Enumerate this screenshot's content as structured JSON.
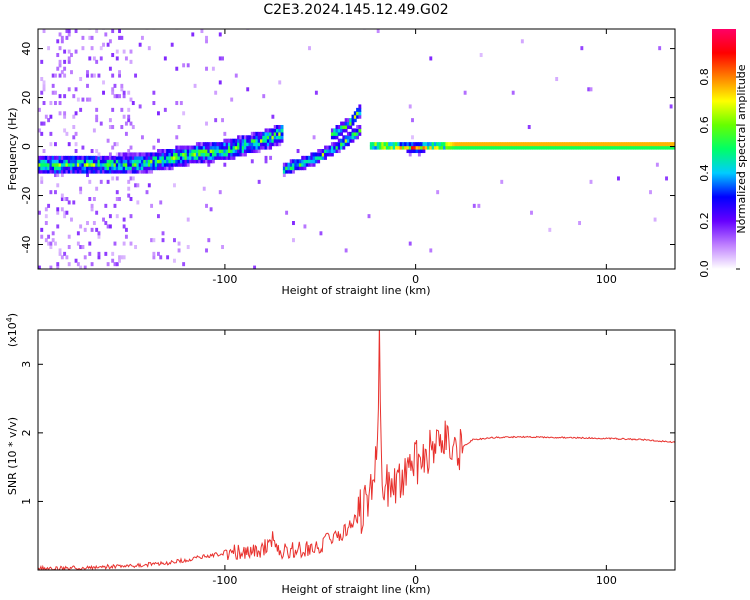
{
  "figure_title": "C2E3.2024.145.12.49.G02",
  "chart_data": [
    {
      "type": "heatmap",
      "title": "C2E3.2024.145.12.49.G02",
      "xlabel": "Height of straight line (km)",
      "ylabel": "Frequency (Hz)",
      "xlim": [
        -198,
        136
      ],
      "ylim": [
        -50,
        48
      ],
      "x_ticks": [
        -100,
        0,
        100
      ],
      "y_ticks": [
        -40,
        -20,
        0,
        20,
        40
      ],
      "colorbar": {
        "label": "Normalized spectral amplitude",
        "range": [
          0,
          1
        ],
        "ticks": [
          "0.0",
          "0.2",
          "0.4",
          "0.6",
          "0.8"
        ],
        "colors": [
          "#ffffff",
          "#bf80ff",
          "#6600ff",
          "#0000ff",
          "#00ccff",
          "#00ff66",
          "#66ff00",
          "#ffff00",
          "#ff8000",
          "#ff0000",
          "#ff0066"
        ]
      },
      "features": [
        {
          "name": "wide band",
          "x": [
            -198,
            -180,
            -160,
            -140,
            -120,
            -100,
            -80,
            -70
          ],
          "y": [
            -8,
            -8,
            -8,
            -7,
            -4,
            -2,
            2,
            5
          ]
        },
        {
          "name": "rising branch",
          "x": [
            -70,
            -55,
            -40,
            -30
          ],
          "y": [
            -10,
            -6,
            0,
            6
          ]
        },
        {
          "name": "upper branch",
          "x": [
            -45,
            -35,
            -30
          ],
          "y": [
            4,
            9,
            14
          ]
        },
        {
          "name": "carrier line",
          "x": [
            -25,
            0,
            20,
            60,
            100,
            136
          ],
          "y": [
            0,
            -1,
            0,
            0,
            0,
            0
          ]
        }
      ]
    },
    {
      "type": "line",
      "xlabel": "Height of straight line (km)",
      "ylabel": "SNR (10 * v/v)",
      "scale_label": "(x10",
      "scale_exp": "4",
      "xlim": [
        -198,
        136
      ],
      "ylim": [
        0,
        3.5
      ],
      "x_ticks": [
        -100,
        0,
        100
      ],
      "y_ticks": [
        1,
        2,
        3
      ],
      "color": "#e8322e",
      "series": [
        {
          "x": [
            -198,
            -180,
            -160,
            -150,
            -140,
            -130,
            -120,
            -110,
            -100,
            -90,
            -80,
            -75,
            -70,
            -60,
            -50,
            -45,
            -40,
            -35,
            -30,
            -25,
            -22,
            -20,
            -19,
            -18,
            -15,
            -10,
            -5,
            0,
            5,
            10,
            15,
            20,
            25,
            30,
            40,
            50,
            60,
            80,
            100,
            120,
            136
          ],
          "y": [
            0.02,
            0.03,
            0.05,
            0.06,
            0.08,
            0.1,
            0.15,
            0.2,
            0.25,
            0.28,
            0.3,
            0.45,
            0.28,
            0.3,
            0.35,
            0.45,
            0.5,
            0.65,
            0.8,
            1.05,
            1.4,
            1.7,
            3.4,
            1.5,
            1.2,
            1.3,
            1.45,
            1.55,
            1.65,
            1.75,
            1.85,
            1.7,
            1.8,
            1.9,
            1.93,
            1.94,
            1.94,
            1.93,
            1.92,
            1.9,
            1.86
          ]
        }
      ]
    }
  ]
}
